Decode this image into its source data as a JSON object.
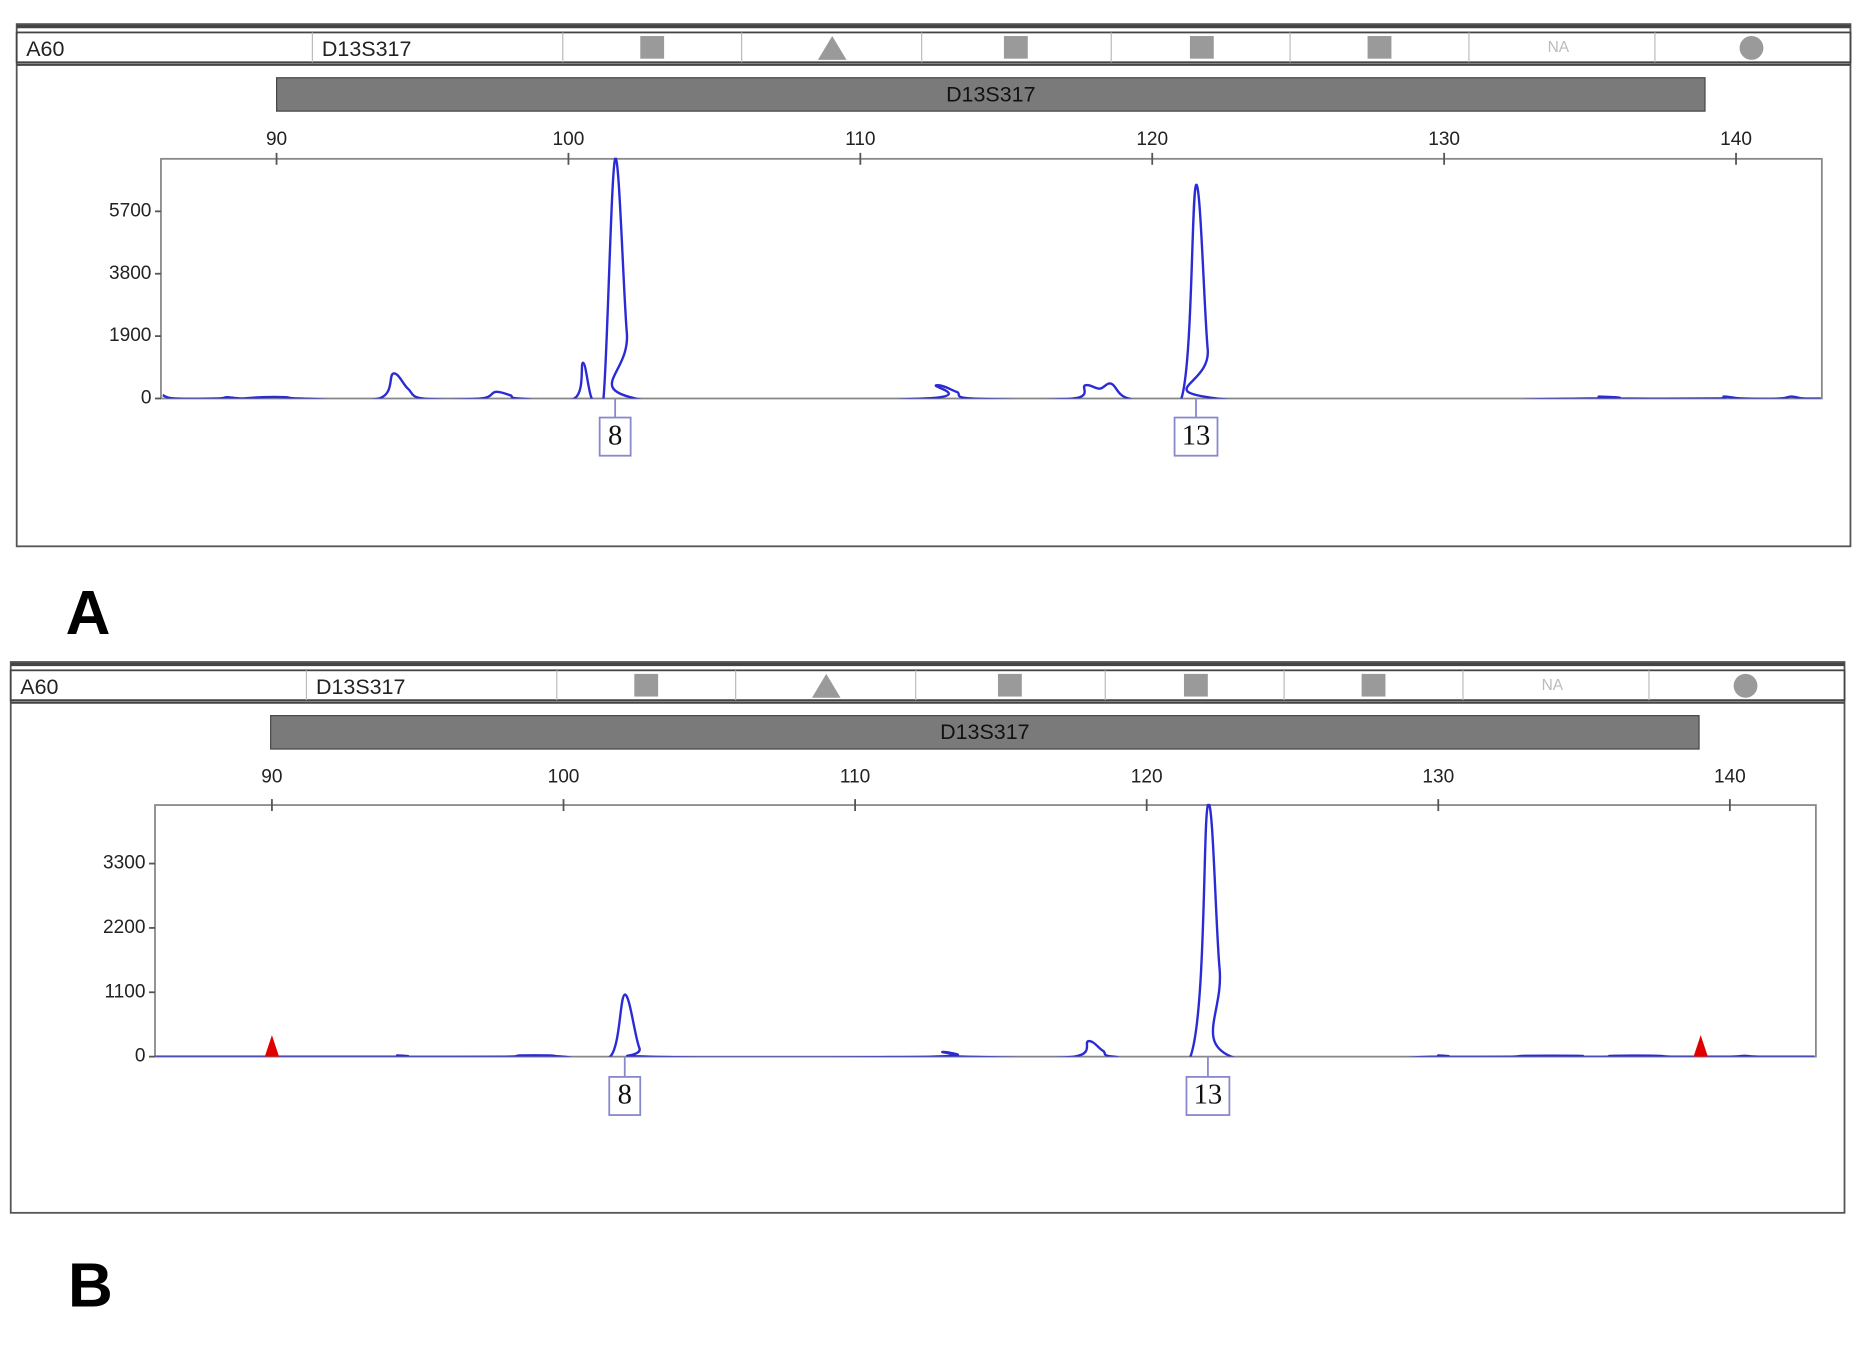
{
  "chart_data": [
    {
      "type": "line",
      "panel_label": "A",
      "sample": "A60",
      "marker": "D13S317",
      "status": "NA",
      "bin_label": "D13S317",
      "xlim": [
        86.04,
        142.94
      ],
      "xticks": [
        90,
        100,
        110,
        120,
        130,
        140
      ],
      "ylim": [
        0,
        7300
      ],
      "yticks": [
        0,
        1900,
        3800,
        5700
      ],
      "x": [
        86.1,
        86.5,
        88,
        88.3,
        88.8,
        89.5,
        90.3,
        90.8,
        93.5,
        94,
        94.5,
        95,
        97,
        97.5,
        98,
        98.3,
        100.2,
        100.5,
        100.8,
        101.2,
        101.6,
        102,
        102.3,
        112.2,
        112.6,
        113.3,
        113.8,
        117.3,
        117.7,
        118.2,
        118.6,
        119.2,
        121,
        121.5,
        121.9,
        122.2,
        135,
        135.3,
        135.7,
        139.3,
        139.6,
        140.2,
        141.5,
        141.9,
        142.3,
        142.9
      ],
      "series": [
        {
          "color": "#2b2bd6",
          "values": [
            100,
            0,
            0,
            40,
            0,
            40,
            40,
            0,
            0,
            760,
            300,
            0,
            0,
            200,
            100,
            0,
            0,
            1090,
            0,
            0,
            7300,
            2000,
            0,
            0,
            400,
            200,
            0,
            0,
            400,
            300,
            450,
            0,
            0,
            6500,
            1500,
            0,
            0,
            60,
            0,
            0,
            60,
            0,
            0,
            60,
            0,
            0
          ]
        }
      ],
      "allele_labels": [
        {
          "x": 101.6,
          "label": "8"
        },
        {
          "x": 121.5,
          "label": "13"
        }
      ]
    },
    {
      "type": "line",
      "panel_label": "B",
      "sample": "A60",
      "marker": "D13S317",
      "status": "NA",
      "bin_label": "D13S317",
      "xlim": [
        85.99,
        142.95
      ],
      "xticks": [
        90,
        100,
        110,
        120,
        130,
        140
      ],
      "ylim": [
        0,
        4300
      ],
      "yticks": [
        0,
        1100,
        2200,
        3300
      ],
      "x": [
        86,
        94,
        94.3,
        94.7,
        98,
        98.5,
        99.5,
        100,
        101.6,
        102.1,
        102.6,
        103,
        112.6,
        113,
        113.5,
        113.8,
        117.5,
        118,
        118.5,
        118.9,
        121.5,
        122.1,
        122.5,
        122.9,
        129.8,
        130,
        130.3,
        132.5,
        133,
        134.8,
        135,
        135.8,
        136,
        137.5,
        138,
        140,
        140.5,
        141,
        142.9
      ],
      "series": [
        {
          "color": "#2b2bd6",
          "values": [
            0,
            0,
            20,
            0,
            0,
            20,
            20,
            0,
            0,
            1060,
            150,
            0,
            0,
            80,
            40,
            0,
            0,
            265,
            100,
            0,
            0,
            4300,
            1500,
            0,
            0,
            20,
            0,
            0,
            15,
            15,
            0,
            0,
            15,
            15,
            0,
            0,
            15,
            0,
            0
          ]
        }
      ],
      "size_markers": {
        "x": [
          90,
          139
        ],
        "color": "#e00000"
      },
      "allele_labels": [
        {
          "x": 102.1,
          "label": "8"
        },
        {
          "x": 122.1,
          "label": "13"
        }
      ]
    }
  ]
}
